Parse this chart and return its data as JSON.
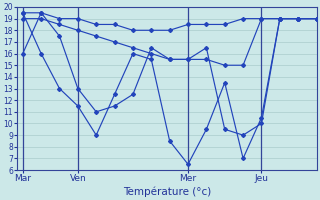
{
  "xlabel": "Température (°c)",
  "background_color": "#cce8e8",
  "line_color": "#2244bb",
  "grid_color": "#aacccc",
  "ylim": [
    6,
    20
  ],
  "yticks": [
    6,
    7,
    8,
    9,
    10,
    11,
    12,
    13,
    14,
    15,
    16,
    17,
    18,
    19,
    20
  ],
  "x_tick_labels": [
    "Mar",
    "Ven",
    "Mer",
    "Jeu"
  ],
  "x_tick_positions": [
    0,
    3,
    9,
    13
  ],
  "x_vlines": [
    0,
    3,
    9,
    13
  ],
  "xlim": [
    -0.3,
    16
  ],
  "num_x_minor": 1,
  "series": [
    {
      "x": [
        0,
        1,
        2,
        3,
        4,
        5,
        6,
        7,
        8,
        9,
        10,
        11,
        12,
        13,
        14,
        15,
        16
      ],
      "y": [
        19.5,
        19.5,
        19.0,
        19.0,
        18.5,
        18.5,
        18.0,
        18.0,
        18.0,
        18.5,
        18.5,
        18.5,
        19.0,
        19.0,
        19.0,
        19.0,
        19.0
      ]
    },
    {
      "x": [
        0,
        1,
        2,
        3,
        4,
        5,
        6,
        7,
        8,
        9,
        10,
        11,
        12,
        13,
        14,
        15,
        16
      ],
      "y": [
        19.0,
        19.0,
        18.5,
        18.0,
        17.5,
        17.0,
        16.5,
        16.0,
        15.5,
        15.5,
        15.5,
        15.0,
        15.0,
        19.0,
        19.0,
        19.0,
        19.0
      ]
    },
    {
      "x": [
        0,
        1,
        2,
        3,
        4,
        5,
        6,
        7,
        8,
        9,
        10,
        11,
        12,
        13,
        14,
        15,
        16
      ],
      "y": [
        19.5,
        16.0,
        13.0,
        11.5,
        9.0,
        12.5,
        16.0,
        15.5,
        8.5,
        6.5,
        9.5,
        13.5,
        7.0,
        10.5,
        19.0,
        19.0,
        19.0
      ]
    },
    {
      "x": [
        0,
        1,
        2,
        3,
        4,
        5,
        6,
        7,
        8,
        9,
        10,
        11,
        12,
        13,
        14,
        15,
        16
      ],
      "y": [
        16.0,
        19.5,
        17.5,
        13.0,
        11.0,
        11.5,
        12.5,
        16.5,
        15.5,
        15.5,
        16.5,
        9.5,
        9.0,
        10.0,
        19.0,
        19.0,
        19.0
      ]
    }
  ]
}
